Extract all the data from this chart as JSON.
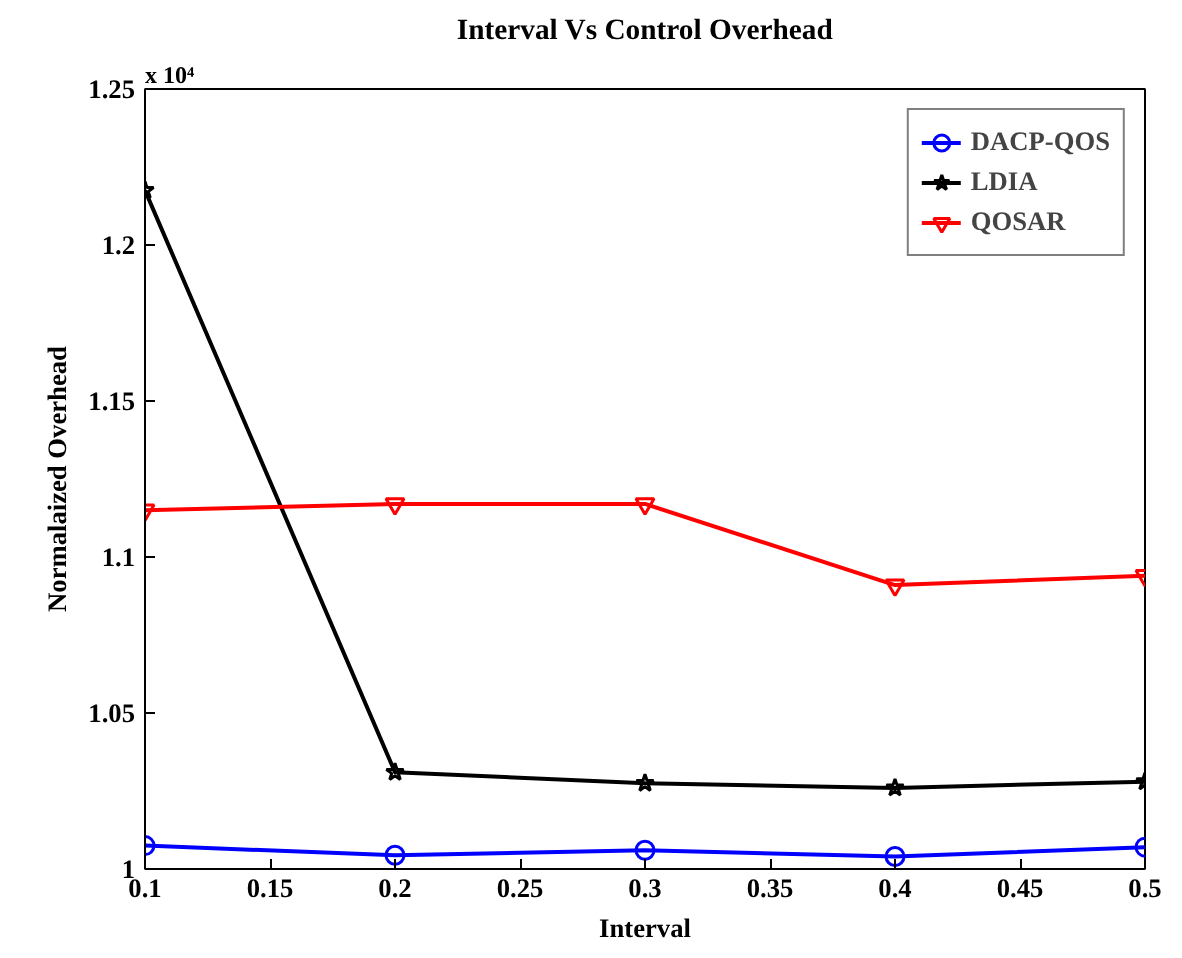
{
  "chart_data": {
    "type": "line",
    "title": "Interval Vs Control Overhead",
    "xlabel": "Interval",
    "ylabel": "Normalaized Overhead",
    "annotations": [
      "x 10⁴"
    ],
    "x": [
      0.1,
      0.2,
      0.3,
      0.4,
      0.5
    ],
    "series": [
      {
        "name": "DACP-QOS",
        "color": "#0000ff",
        "marker": "circle",
        "values": [
          1.0075,
          1.0044,
          1.006,
          1.004,
          1.007
        ]
      },
      {
        "name": "LDIA",
        "color": "#000000",
        "marker": "star",
        "values": [
          1.2175,
          1.031,
          1.0275,
          1.026,
          1.028
        ]
      },
      {
        "name": "QOSAR",
        "color": "#ff0000",
        "marker": "triangle",
        "values": [
          1.115,
          1.117,
          1.117,
          1.091,
          1.094
        ]
      }
    ],
    "xlim": [
      0.1,
      0.5
    ],
    "xticks": [
      0.1,
      0.15,
      0.2,
      0.25,
      0.3,
      0.35,
      0.4,
      0.45,
      0.5
    ],
    "ylim": [
      1,
      1.25
    ],
    "yticks": [
      1,
      1.05,
      1.1,
      1.15,
      1.2,
      1.25
    ],
    "grid": false,
    "legend": "top right",
    "line_style": "solid"
  }
}
